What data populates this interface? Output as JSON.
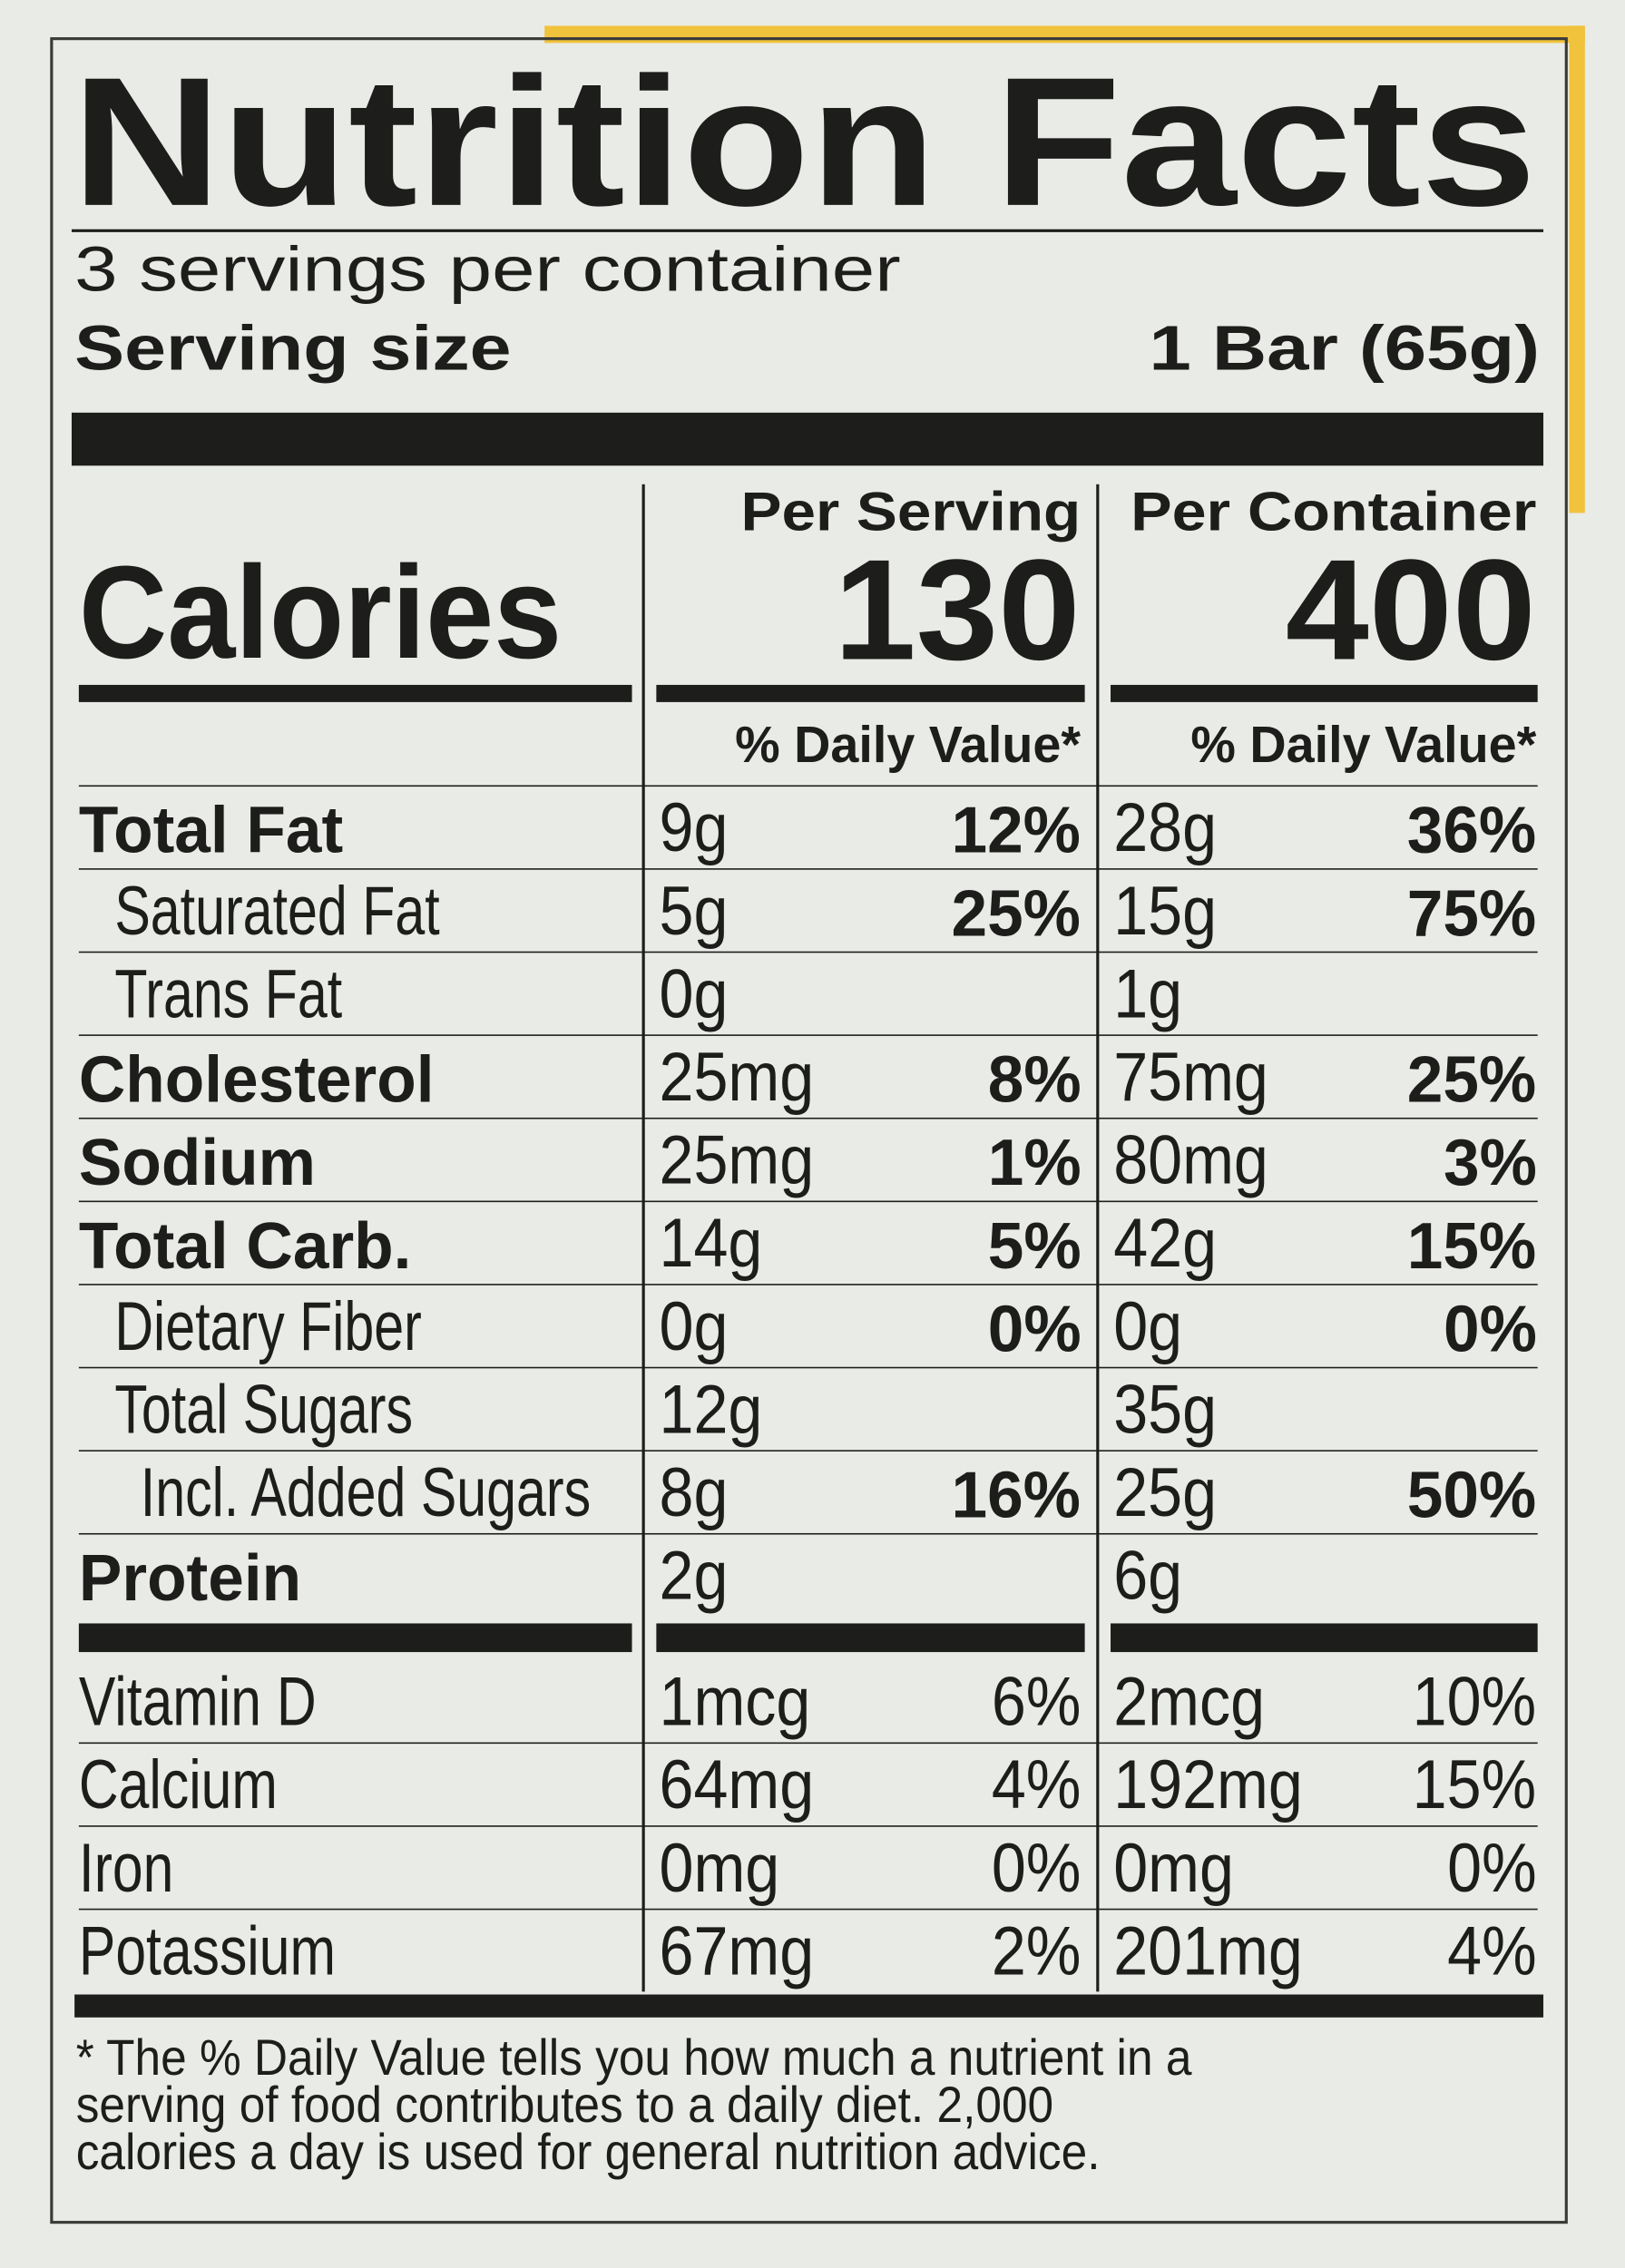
{
  "title": "Nutrition Facts",
  "servings": "3 servings per container",
  "serving_size": {
    "label": "Serving size",
    "value": "1 Bar (65g)"
  },
  "columns": [
    "Per Serving",
    "Per Container"
  ],
  "calories": {
    "label": "Calories",
    "values": [
      130,
      400
    ]
  },
  "dv_headers": [
    "% Daily Value*",
    "% Daily Value*"
  ],
  "nutrients": [
    [
      "Total Fat",
      "9g",
      "12%",
      "28g",
      "36%"
    ],
    [
      "Saturated Fat",
      "5g",
      "25%",
      "15g",
      "75%"
    ],
    [
      "Trans Fat",
      "0g",
      null,
      "1g",
      null
    ],
    [
      "Cholesterol",
      "25mg",
      "8%",
      "75mg",
      "25%"
    ],
    [
      "Sodium",
      "25mg",
      "1%",
      "80mg",
      "3%"
    ],
    [
      "Total Carb.",
      "14g",
      "5%",
      "42g",
      "15%"
    ],
    [
      "Dietary Fiber",
      "0g",
      "0%",
      "0g",
      "0%"
    ],
    [
      "Total Sugars",
      "12g",
      null,
      "35g",
      null
    ],
    [
      "Incl. Added Sugars",
      "8g",
      "16%",
      "25g",
      "50%"
    ],
    [
      "Protein",
      "2g",
      null,
      "6g",
      null
    ]
  ],
  "vitamins": [
    [
      "Vitamin D",
      "1mcg",
      "6%",
      "2mcg",
      "10%"
    ],
    [
      "Calcium",
      "64mg",
      "4%",
      "192mg",
      "15%"
    ],
    [
      "Iron",
      "0mg",
      "0%",
      "0mg",
      "0%"
    ],
    [
      "Potassium",
      "67mg",
      "2%",
      "201mg",
      "4%"
    ]
  ],
  "footnote": [
    "* The % Daily Value tells you how much a nutrient in a",
    "serving of food contributes to a daily diet. 2,000",
    "calories a day is used for general nutrition advice."
  ]
}
